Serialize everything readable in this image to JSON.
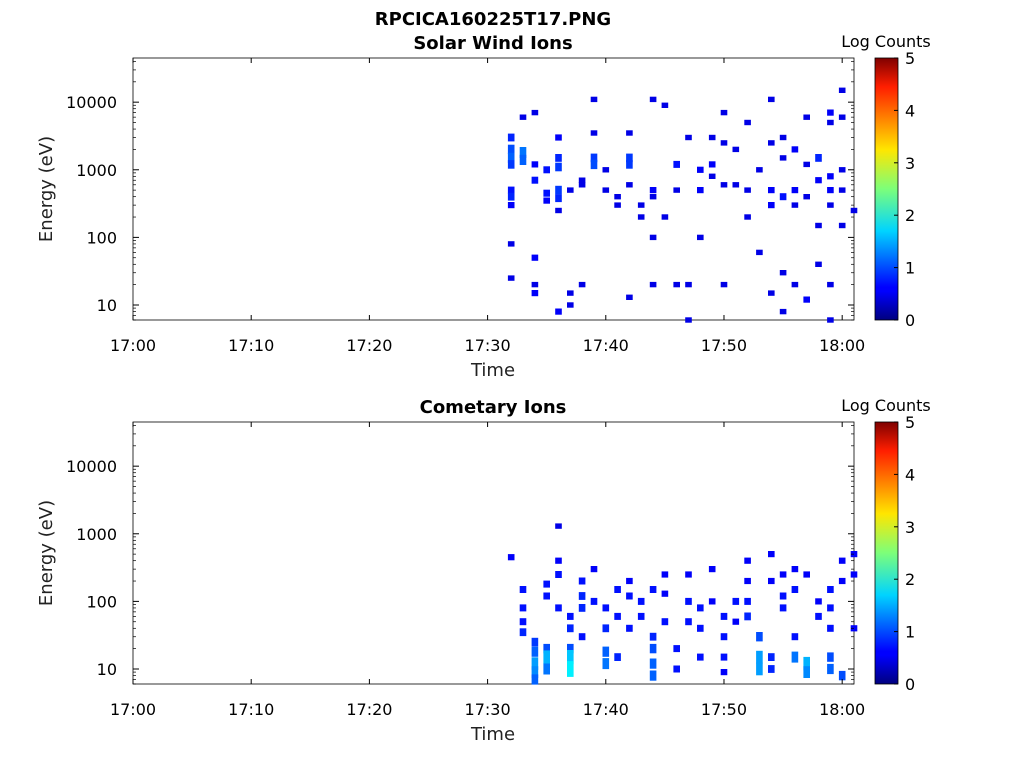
{
  "figure": {
    "title": "RPCICA160225T17.PNG"
  },
  "chart_data": [
    {
      "type": "heatmap",
      "title": "Solar Wind Ions",
      "xlabel": "Time",
      "ylabel": "Energy (eV)",
      "x_ticks": [
        "17:00",
        "17:10",
        "17:20",
        "17:30",
        "17:40",
        "17:50",
        "18:00"
      ],
      "xlim": [
        "17:00",
        "18:01"
      ],
      "y_scale": "log",
      "y_ticks": [
        "10",
        "100",
        "1000",
        "10000"
      ],
      "ylim": [
        6,
        45000
      ],
      "colorbar": {
        "label": "Log Counts",
        "ticks": [
          "0",
          "1",
          "2",
          "3",
          "4",
          "5"
        ],
        "range": [
          0,
          5
        ],
        "colormap": "jet"
      },
      "data_start": "17:32",
      "points": [
        [
          "17:32",
          3000,
          0.6
        ],
        [
          "17:32",
          2000,
          0.8
        ],
        [
          "17:32",
          1500,
          0.9
        ],
        [
          "17:32",
          1200,
          0.7
        ],
        [
          "17:32",
          500,
          0.5
        ],
        [
          "17:32",
          400,
          0.6
        ],
        [
          "17:32",
          300,
          0.4
        ],
        [
          "17:32",
          80,
          0.3
        ],
        [
          "17:32",
          25,
          0.3
        ],
        [
          "17:33",
          1800,
          1.0
        ],
        [
          "17:33",
          1400,
          0.9
        ],
        [
          "17:33",
          6000,
          0.3
        ],
        [
          "17:34",
          7000,
          0.3
        ],
        [
          "17:34",
          1200,
          0.4
        ],
        [
          "17:34",
          700,
          0.5
        ],
        [
          "17:34",
          50,
          0.4
        ],
        [
          "17:34",
          20,
          0.3
        ],
        [
          "17:34",
          15,
          0.4
        ],
        [
          "17:35",
          1000,
          0.5
        ],
        [
          "17:35",
          450,
          0.5
        ],
        [
          "17:35",
          350,
          0.4
        ],
        [
          "17:36",
          3000,
          0.4
        ],
        [
          "17:36",
          1500,
          0.6
        ],
        [
          "17:36",
          1100,
          0.7
        ],
        [
          "17:36",
          500,
          0.7
        ],
        [
          "17:36",
          380,
          0.6
        ],
        [
          "17:36",
          250,
          0.3
        ],
        [
          "17:36",
          8,
          0.4
        ],
        [
          "17:37",
          500,
          0.3
        ],
        [
          "17:37",
          15,
          0.3
        ],
        [
          "17:37",
          10,
          0.3
        ],
        [
          "17:38",
          600,
          0.3
        ],
        [
          "17:38",
          700,
          0.3
        ],
        [
          "17:38",
          20,
          0.3
        ],
        [
          "17:39",
          1500,
          0.7
        ],
        [
          "17:39",
          1200,
          0.8
        ],
        [
          "17:39",
          11000,
          0.3
        ],
        [
          "17:39",
          3500,
          0.3
        ],
        [
          "17:40",
          1000,
          0.3
        ],
        [
          "17:40",
          500,
          0.3
        ],
        [
          "17:41",
          400,
          0.3
        ],
        [
          "17:41",
          300,
          0.3
        ],
        [
          "17:42",
          3500,
          0.3
        ],
        [
          "17:42",
          1500,
          0.7
        ],
        [
          "17:42",
          1200,
          0.7
        ],
        [
          "17:42",
          600,
          0.3
        ],
        [
          "17:42",
          13,
          0.3
        ],
        [
          "17:43",
          300,
          0.3
        ],
        [
          "17:43",
          200,
          0.3
        ],
        [
          "17:44",
          11000,
          0.3
        ],
        [
          "17:44",
          500,
          0.4
        ],
        [
          "17:44",
          400,
          0.3
        ],
        [
          "17:44",
          100,
          0.3
        ],
        [
          "17:44",
          20,
          0.3
        ],
        [
          "17:45",
          9000,
          0.3
        ],
        [
          "17:45",
          200,
          0.3
        ],
        [
          "17:46",
          1200,
          0.5
        ],
        [
          "17:46",
          500,
          0.3
        ],
        [
          "17:46",
          20,
          0.3
        ],
        [
          "17:47",
          3000,
          0.3
        ],
        [
          "17:47",
          20,
          0.3
        ],
        [
          "17:47",
          6,
          0.3
        ],
        [
          "17:48",
          1000,
          0.4
        ],
        [
          "17:48",
          500,
          0.4
        ],
        [
          "17:48",
          100,
          0.3
        ],
        [
          "17:49",
          3000,
          0.3
        ],
        [
          "17:49",
          1200,
          0.4
        ],
        [
          "17:49",
          800,
          0.3
        ],
        [
          "17:50",
          7000,
          0.3
        ],
        [
          "17:50",
          2500,
          0.3
        ],
        [
          "17:50",
          600,
          0.3
        ],
        [
          "17:50",
          20,
          0.3
        ],
        [
          "17:51",
          2000,
          0.3
        ],
        [
          "17:51",
          600,
          0.3
        ],
        [
          "17:52",
          5000,
          0.3
        ],
        [
          "17:52",
          500,
          0.3
        ],
        [
          "17:52",
          200,
          0.3
        ],
        [
          "17:53",
          1000,
          0.3
        ],
        [
          "17:53",
          60,
          0.3
        ],
        [
          "17:54",
          11000,
          0.3
        ],
        [
          "17:54",
          2500,
          0.3
        ],
        [
          "17:54",
          500,
          0.4
        ],
        [
          "17:54",
          300,
          0.4
        ],
        [
          "17:54",
          15,
          0.3
        ],
        [
          "17:55",
          3000,
          0.3
        ],
        [
          "17:55",
          1500,
          0.3
        ],
        [
          "17:55",
          400,
          0.5
        ],
        [
          "17:55",
          30,
          0.3
        ],
        [
          "17:55",
          8,
          0.3
        ],
        [
          "17:56",
          2000,
          0.4
        ],
        [
          "17:56",
          500,
          0.4
        ],
        [
          "17:56",
          300,
          0.3
        ],
        [
          "17:56",
          20,
          0.3
        ],
        [
          "17:57",
          6000,
          0.3
        ],
        [
          "17:57",
          1200,
          0.3
        ],
        [
          "17:57",
          400,
          0.3
        ],
        [
          "17:57",
          12,
          0.4
        ],
        [
          "17:58",
          1500,
          0.6
        ],
        [
          "17:58",
          700,
          0.4
        ],
        [
          "17:58",
          150,
          0.3
        ],
        [
          "17:58",
          40,
          0.3
        ],
        [
          "17:59",
          7000,
          0.4
        ],
        [
          "17:59",
          5000,
          0.3
        ],
        [
          "17:59",
          800,
          0.4
        ],
        [
          "17:59",
          500,
          0.4
        ],
        [
          "17:59",
          300,
          0.3
        ],
        [
          "17:59",
          20,
          0.3
        ],
        [
          "17:59",
          6,
          0.3
        ],
        [
          "18:00",
          15000,
          0.3
        ],
        [
          "18:00",
          6000,
          0.3
        ],
        [
          "18:00",
          1000,
          0.3
        ],
        [
          "18:00",
          500,
          0.3
        ],
        [
          "18:00",
          150,
          0.3
        ],
        [
          "18:01",
          250,
          0.3
        ]
      ]
    },
    {
      "type": "heatmap",
      "title": "Cometary Ions",
      "xlabel": "Time",
      "ylabel": "Energy (eV)",
      "x_ticks": [
        "17:00",
        "17:10",
        "17:20",
        "17:30",
        "17:40",
        "17:50",
        "18:00"
      ],
      "xlim": [
        "17:00",
        "18:01"
      ],
      "y_scale": "log",
      "y_ticks": [
        "10",
        "100",
        "1000",
        "10000"
      ],
      "ylim": [
        6,
        45000
      ],
      "colorbar": {
        "label": "Log Counts",
        "ticks": [
          "0",
          "1",
          "2",
          "3",
          "4",
          "5"
        ],
        "range": [
          0,
          5
        ],
        "colormap": "jet"
      },
      "data_start": "17:32",
      "points": [
        [
          "17:32",
          450,
          0.4
        ],
        [
          "17:33",
          150,
          0.5
        ],
        [
          "17:33",
          80,
          0.5
        ],
        [
          "17:33",
          50,
          0.5
        ],
        [
          "17:33",
          35,
          0.6
        ],
        [
          "17:34",
          25,
          0.7
        ],
        [
          "17:34",
          18,
          0.9
        ],
        [
          "17:34",
          12,
          1.2
        ],
        [
          "17:34",
          9,
          1.1
        ],
        [
          "17:34",
          7,
          0.9
        ],
        [
          "17:35",
          180,
          0.5
        ],
        [
          "17:35",
          120,
          0.5
        ],
        [
          "17:35",
          20,
          0.8
        ],
        [
          "17:35",
          15,
          1.3
        ],
        [
          "17:35",
          10,
          1.0
        ],
        [
          "17:36",
          1300,
          0.3
        ],
        [
          "17:36",
          400,
          0.4
        ],
        [
          "17:36",
          250,
          0.5
        ],
        [
          "17:36",
          80,
          0.5
        ],
        [
          "17:37",
          60,
          0.5
        ],
        [
          "17:37",
          40,
          0.6
        ],
        [
          "17:37",
          20,
          0.8
        ],
        [
          "17:37",
          15,
          1.4
        ],
        [
          "17:37",
          10,
          1.6
        ],
        [
          "17:38",
          200,
          0.5
        ],
        [
          "17:38",
          120,
          0.6
        ],
        [
          "17:38",
          80,
          0.6
        ],
        [
          "17:38",
          30,
          0.5
        ],
        [
          "17:39",
          300,
          0.4
        ],
        [
          "17:39",
          100,
          0.5
        ],
        [
          "17:40",
          80,
          0.5
        ],
        [
          "17:40",
          40,
          0.6
        ],
        [
          "17:40",
          18,
          0.9
        ],
        [
          "17:40",
          12,
          1.0
        ],
        [
          "17:41",
          150,
          0.5
        ],
        [
          "17:41",
          60,
          0.5
        ],
        [
          "17:41",
          15,
          0.6
        ],
        [
          "17:42",
          200,
          0.4
        ],
        [
          "17:42",
          120,
          0.5
        ],
        [
          "17:42",
          40,
          0.5
        ],
        [
          "17:43",
          100,
          0.5
        ],
        [
          "17:43",
          60,
          0.5
        ],
        [
          "17:44",
          150,
          0.5
        ],
        [
          "17:44",
          30,
          0.6
        ],
        [
          "17:44",
          20,
          0.8
        ],
        [
          "17:44",
          12,
          0.9
        ],
        [
          "17:44",
          8,
          0.9
        ],
        [
          "17:45",
          250,
          0.4
        ],
        [
          "17:45",
          130,
          0.4
        ],
        [
          "17:45",
          50,
          0.5
        ],
        [
          "17:46",
          20,
          0.5
        ],
        [
          "17:46",
          10,
          0.5
        ],
        [
          "17:47",
          250,
          0.4
        ],
        [
          "17:47",
          100,
          0.5
        ],
        [
          "17:47",
          50,
          0.5
        ],
        [
          "17:48",
          80,
          0.5
        ],
        [
          "17:48",
          40,
          0.5
        ],
        [
          "17:48",
          15,
          0.5
        ],
        [
          "17:49",
          300,
          0.4
        ],
        [
          "17:49",
          100,
          0.4
        ],
        [
          "17:50",
          60,
          0.5
        ],
        [
          "17:50",
          30,
          0.5
        ],
        [
          "17:50",
          15,
          0.5
        ],
        [
          "17:50",
          9,
          0.4
        ],
        [
          "17:51",
          100,
          0.5
        ],
        [
          "17:51",
          50,
          0.4
        ],
        [
          "17:52",
          400,
          0.4
        ],
        [
          "17:52",
          200,
          0.4
        ],
        [
          "17:52",
          100,
          0.5
        ],
        [
          "17:52",
          60,
          0.6
        ],
        [
          "17:53",
          30,
          0.8
        ],
        [
          "17:53",
          15,
          1.2
        ],
        [
          "17:53",
          10,
          1.2
        ],
        [
          "17:54",
          500,
          0.4
        ],
        [
          "17:54",
          200,
          0.4
        ],
        [
          "17:54",
          15,
          0.6
        ],
        [
          "17:54",
          10,
          0.6
        ],
        [
          "17:55",
          250,
          0.4
        ],
        [
          "17:55",
          120,
          0.5
        ],
        [
          "17:55",
          80,
          0.5
        ],
        [
          "17:56",
          300,
          0.4
        ],
        [
          "17:56",
          150,
          0.5
        ],
        [
          "17:56",
          30,
          0.5
        ],
        [
          "17:56",
          15,
          1.0
        ],
        [
          "17:57",
          12,
          1.3
        ],
        [
          "17:57",
          9,
          1.1
        ],
        [
          "17:57",
          250,
          0.4
        ],
        [
          "17:58",
          100,
          0.4
        ],
        [
          "17:58",
          60,
          0.5
        ],
        [
          "17:59",
          150,
          0.5
        ],
        [
          "17:59",
          80,
          0.5
        ],
        [
          "17:59",
          40,
          0.5
        ],
        [
          "17:59",
          15,
          0.8
        ],
        [
          "17:59",
          10,
          0.9
        ],
        [
          "18:00",
          400,
          0.4
        ],
        [
          "18:00",
          200,
          0.4
        ],
        [
          "18:00",
          8,
          0.8
        ],
        [
          "18:01",
          500,
          0.4
        ],
        [
          "18:01",
          250,
          0.4
        ],
        [
          "18:01",
          40,
          0.4
        ]
      ]
    }
  ]
}
